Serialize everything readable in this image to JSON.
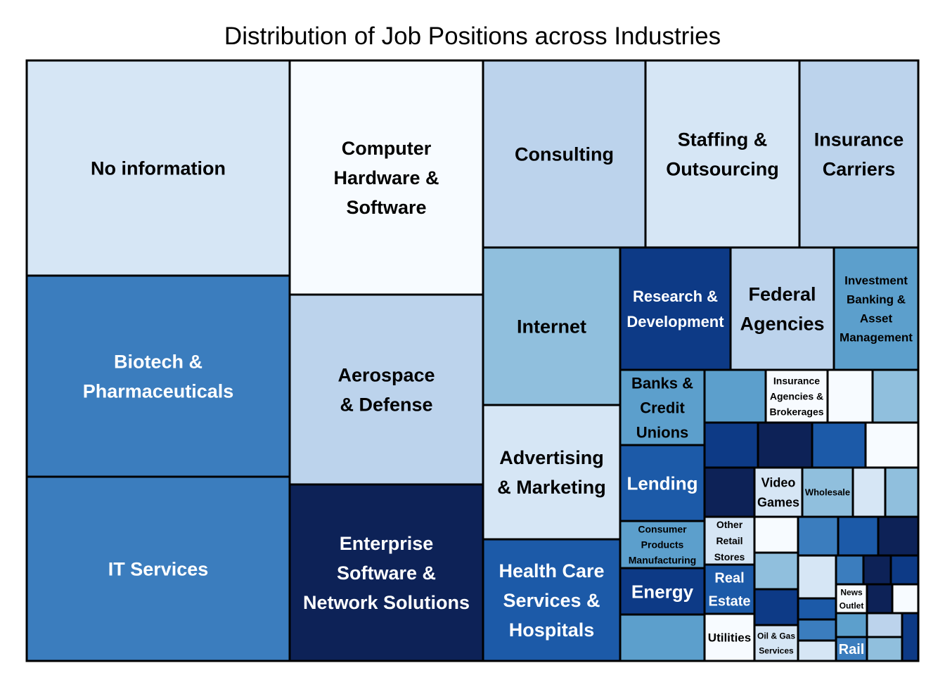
{
  "chart_data": {
    "type": "treemap",
    "title": "Distribution of Job Positions across Industries",
    "colors": {
      "c1": "#f7fbff",
      "c2": "#d6e6f5",
      "c3": "#bcd3ec",
      "c4": "#90bfdd",
      "c5": "#5c9fcc",
      "c6": "#3b7dbe",
      "c7": "#1c5aa8",
      "c8": "#0d3a86",
      "c9": "#0d2257"
    },
    "tiles": [
      {
        "label": "No information",
        "color": "c2"
      },
      {
        "label": "Biotech & Pharmaceuticals",
        "color": "c6"
      },
      {
        "label": "IT Services",
        "color": "c6"
      },
      {
        "label": "Computer Hardware & Software",
        "color": "c1"
      },
      {
        "label": "Aerospace & Defense",
        "color": "c3"
      },
      {
        "label": "Enterprise Software & Network Solutions",
        "color": "c9"
      },
      {
        "label": "Consulting",
        "color": "c3"
      },
      {
        "label": "Staffing & Outsourcing",
        "color": "c2"
      },
      {
        "label": "Insurance Carriers",
        "color": "c3"
      },
      {
        "label": "Internet",
        "color": "c4"
      },
      {
        "label": "Advertising & Marketing",
        "color": "c2"
      },
      {
        "label": "Health Care Services & Hospitals",
        "color": "c7"
      },
      {
        "label": "Research & Development",
        "color": "c8"
      },
      {
        "label": "Federal Agencies",
        "color": "c3"
      },
      {
        "label": "Investment Banking & Asset Management",
        "color": "c5"
      },
      {
        "label": "Banks & Credit Unions",
        "color": "c5"
      },
      {
        "label": "Lending",
        "color": "c7"
      },
      {
        "label": "Consumer Products Manufacturing",
        "color": "c5"
      },
      {
        "label": "Energy",
        "color": "c8"
      },
      {
        "label": "",
        "color": "c5"
      },
      {
        "label": "",
        "color": "c5"
      },
      {
        "label": "Insurance Agencies & Brokerages",
        "color": "c1"
      },
      {
        "label": "",
        "color": "c1"
      },
      {
        "label": "",
        "color": "c4"
      },
      {
        "label": "",
        "color": "c8"
      },
      {
        "label": "",
        "color": "c9"
      },
      {
        "label": "",
        "color": "c7"
      },
      {
        "label": "",
        "color": "c1"
      },
      {
        "label": "",
        "color": "c9"
      },
      {
        "label": "Video Games",
        "color": "c2"
      },
      {
        "label": "Wholesale",
        "color": "c4"
      },
      {
        "label": "",
        "color": "c2"
      },
      {
        "label": "",
        "color": "c4"
      },
      {
        "label": "Other Retail Stores",
        "color": "c2"
      },
      {
        "label": "Real Estate",
        "color": "c7"
      },
      {
        "label": "Utilities",
        "color": "c1"
      },
      {
        "label": "",
        "color": "c1"
      },
      {
        "label": "",
        "color": "c4"
      },
      {
        "label": "",
        "color": "c8"
      },
      {
        "label": "Oil & Gas Services",
        "color": "c2"
      },
      {
        "label": "",
        "color": "c6"
      },
      {
        "label": "",
        "color": "c7"
      },
      {
        "label": "",
        "color": "c9"
      },
      {
        "label": "",
        "color": "c2"
      },
      {
        "label": "",
        "color": "c7"
      },
      {
        "label": "",
        "color": "c6"
      },
      {
        "label": "",
        "color": "c2"
      },
      {
        "label": "",
        "color": "c6"
      },
      {
        "label": "",
        "color": "c9"
      },
      {
        "label": "",
        "color": "c8"
      },
      {
        "label": "News Outlet",
        "color": "c1"
      },
      {
        "label": "",
        "color": "c9"
      },
      {
        "label": "",
        "color": "c1"
      },
      {
        "label": "",
        "color": "c5"
      },
      {
        "label": "",
        "color": "c3"
      },
      {
        "label": "",
        "color": "c8"
      },
      {
        "label": "Rail",
        "color": "c6"
      },
      {
        "label": "",
        "color": "c4"
      }
    ]
  }
}
